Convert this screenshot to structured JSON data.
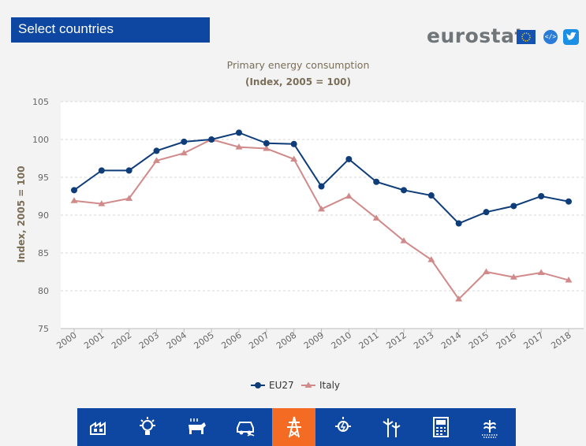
{
  "header": {
    "select_label": "Select countries",
    "brand": "eurostat",
    "icons": [
      "eu-flag-icon",
      "embed-code-icon",
      "twitter-icon"
    ],
    "embed_glyph": "</>"
  },
  "chart_data": {
    "type": "line",
    "title": "Primary energy consumption",
    "subtitle": "(Index, 2005 = 100)",
    "xlabel": "",
    "ylabel": "Index, 2005 = 100",
    "ylim": [
      75,
      105
    ],
    "yticks": [
      75,
      80,
      85,
      90,
      95,
      100,
      105
    ],
    "grid": true,
    "legend": "bottom-center",
    "categories": [
      "2000",
      "2001",
      "2002",
      "2003",
      "2004",
      "2005",
      "2006",
      "2007",
      "2008",
      "2009",
      "2010",
      "2011",
      "2012",
      "2013",
      "2014",
      "2015",
      "2016",
      "2017",
      "2018"
    ],
    "series": [
      {
        "name": "EU27",
        "color": "#0f3d7a",
        "marker": "circle",
        "values": [
          93.3,
          95.9,
          95.9,
          98.5,
          99.7,
          100.0,
          100.9,
          99.5,
          99.4,
          93.8,
          97.4,
          94.4,
          93.3,
          92.6,
          88.9,
          90.4,
          91.2,
          92.5,
          91.8
        ]
      },
      {
        "name": "Italy",
        "color": "#d18a8a",
        "marker": "triangle",
        "values": [
          91.9,
          91.5,
          92.2,
          97.2,
          98.2,
          100.0,
          99.0,
          98.8,
          97.4,
          90.8,
          92.5,
          89.6,
          86.6,
          84.1,
          78.9,
          82.5,
          81.8,
          82.4,
          81.4
        ]
      }
    ]
  },
  "category_bar": {
    "active_index": 4,
    "active_color": "#f46b23",
    "icons": [
      "industry-home-icon",
      "lightbulb-icon",
      "cow-livestock-icon",
      "car-emissions-icon",
      "power-pylon-icon",
      "energy-bulb-icon",
      "wind-turbines-icon",
      "calculator-percent-icon",
      "crop-field-icon"
    ]
  }
}
